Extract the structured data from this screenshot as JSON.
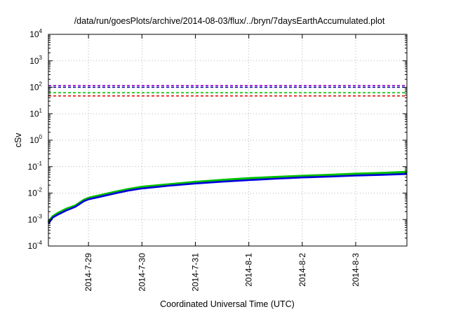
{
  "chart_data": {
    "type": "line",
    "title": "/data/run/goesPlots/archive/2014-08-03/flux/../bryn/7daysEarthAccumulated.plot",
    "xlabel": "Coordinated Universal Time (UTC)",
    "ylabel": "cSv",
    "xlim": [
      "2014-07-28 06:00",
      "2014-08-03 23:00"
    ],
    "ylim": [
      0.0001,
      10000
    ],
    "yscale": "log",
    "grid": true,
    "legend": "none",
    "x_ticks": [
      {
        "x": "2014-07-29",
        "label": "2014-7-29"
      },
      {
        "x": "2014-07-30",
        "label": "2014-7-30"
      },
      {
        "x": "2014-07-31",
        "label": "2014-7-31"
      },
      {
        "x": "2014-08-01",
        "label": "2014-8-1"
      },
      {
        "x": "2014-08-02",
        "label": "2014-8-2"
      },
      {
        "x": "2014-08-03",
        "label": "2014-8-3"
      }
    ],
    "y_ticks": [
      {
        "value": 0.0001,
        "base": "10",
        "exp": "-4"
      },
      {
        "value": 0.001,
        "base": "10",
        "exp": "-3"
      },
      {
        "value": 0.01,
        "base": "10",
        "exp": "-2"
      },
      {
        "value": 0.1,
        "base": "10",
        "exp": "-1"
      },
      {
        "value": 1,
        "base": "10",
        "exp": "0"
      },
      {
        "value": 10,
        "base": "10",
        "exp": "1"
      },
      {
        "value": 100,
        "base": "10",
        "exp": "2"
      },
      {
        "value": 1000,
        "base": "10",
        "exp": "3"
      },
      {
        "value": 10000,
        "base": "10",
        "exp": "4"
      }
    ],
    "reference_lines": [
      {
        "y": 115,
        "color": "#9400d3"
      },
      {
        "y": 100,
        "color": "#0000a0"
      },
      {
        "y": 62,
        "color": "#00c000"
      },
      {
        "y": 47,
        "color": "#e00000"
      }
    ],
    "series": [
      {
        "color": "#00c000",
        "x": [
          "2014-07-28 06:00",
          "2014-07-28 08:00",
          "2014-07-28 10:00",
          "2014-07-28 14:00",
          "2014-07-28 18:00",
          "2014-07-28 22:00",
          "2014-07-29 00:00",
          "2014-07-29 06:00",
          "2014-07-29 12:00",
          "2014-07-29 18:00",
          "2014-07-30 00:00",
          "2014-07-30 12:00",
          "2014-07-31 00:00",
          "2014-07-31 12:00",
          "2014-08-01 00:00",
          "2014-08-01 12:00",
          "2014-08-02 00:00",
          "2014-08-02 12:00",
          "2014-08-03 00:00",
          "2014-08-03 12:00",
          "2014-08-03 23:00"
        ],
        "values": [
          0.0008,
          0.0013,
          0.0017,
          0.0025,
          0.0033,
          0.0055,
          0.0065,
          0.0085,
          0.011,
          0.014,
          0.017,
          0.021,
          0.026,
          0.031,
          0.036,
          0.04,
          0.044,
          0.048,
          0.053,
          0.057,
          0.062
        ]
      },
      {
        "color": "#0000dd",
        "x": [
          "2014-07-28 06:00",
          "2014-07-28 08:00",
          "2014-07-28 10:00",
          "2014-07-28 14:00",
          "2014-07-28 18:00",
          "2014-07-28 22:00",
          "2014-07-29 00:00",
          "2014-07-29 06:00",
          "2014-07-29 12:00",
          "2014-07-29 18:00",
          "2014-07-30 00:00",
          "2014-07-30 12:00",
          "2014-07-31 00:00",
          "2014-07-31 12:00",
          "2014-08-01 00:00",
          "2014-08-01 12:00",
          "2014-08-02 00:00",
          "2014-08-02 12:00",
          "2014-08-03 00:00",
          "2014-08-03 12:00",
          "2014-08-03 23:00"
        ],
        "values": [
          0.0007,
          0.0012,
          0.0015,
          0.0022,
          0.003,
          0.005,
          0.0058,
          0.0075,
          0.0098,
          0.0125,
          0.015,
          0.019,
          0.023,
          0.027,
          0.031,
          0.035,
          0.039,
          0.042,
          0.046,
          0.049,
          0.053
        ]
      }
    ]
  }
}
